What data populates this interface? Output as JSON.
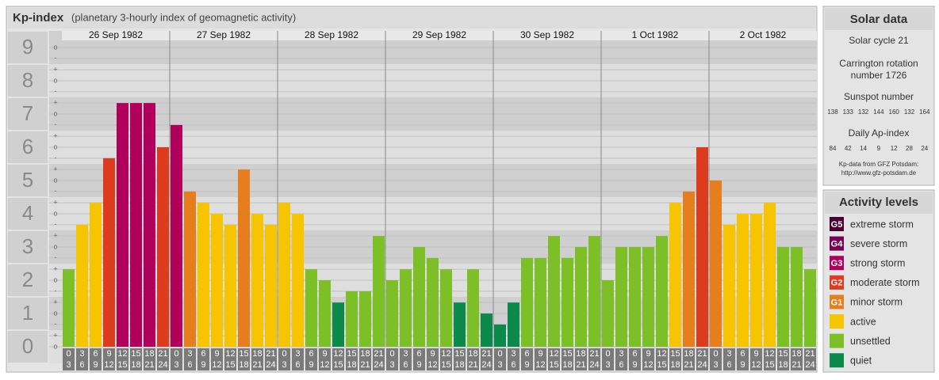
{
  "chart_data": {
    "type": "bar",
    "title": "Kp-index",
    "subtitle": "(planetary 3-hourly index of geomagnetic activity)",
    "ylim": [
      0,
      9.5
    ],
    "yticks": [
      0,
      1,
      2,
      3,
      4,
      5,
      6,
      7,
      8,
      9
    ],
    "minor_yticks": [
      {
        "value": 0,
        "label": "o"
      },
      {
        "value": 0.33,
        "label": "+"
      },
      {
        "value": 0.67,
        "label": "-"
      },
      {
        "value": 1,
        "label": "o"
      },
      {
        "value": 1.33,
        "label": "+"
      },
      {
        "value": 1.67,
        "label": "-"
      },
      {
        "value": 2,
        "label": "o"
      },
      {
        "value": 2.33,
        "label": "+"
      },
      {
        "value": 2.67,
        "label": "-"
      },
      {
        "value": 3,
        "label": "o"
      },
      {
        "value": 3.33,
        "label": "+"
      },
      {
        "value": 3.67,
        "label": "-"
      },
      {
        "value": 4,
        "label": "o"
      },
      {
        "value": 4.33,
        "label": "+"
      },
      {
        "value": 4.67,
        "label": "-"
      },
      {
        "value": 5,
        "label": "o"
      },
      {
        "value": 5.33,
        "label": "+"
      },
      {
        "value": 5.67,
        "label": "-"
      },
      {
        "value": 6,
        "label": "o"
      },
      {
        "value": 6.33,
        "label": "+"
      },
      {
        "value": 6.67,
        "label": "-"
      },
      {
        "value": 7,
        "label": "o"
      },
      {
        "value": 7.33,
        "label": "+"
      },
      {
        "value": 7.67,
        "label": "-"
      },
      {
        "value": 8,
        "label": "o"
      },
      {
        "value": 8.33,
        "label": "+"
      },
      {
        "value": 8.67,
        "label": "-"
      },
      {
        "value": 9,
        "label": "o"
      }
    ],
    "hours": [
      [
        "0",
        "3"
      ],
      [
        "3",
        "6"
      ],
      [
        "6",
        "9"
      ],
      [
        "9",
        "12"
      ],
      [
        "12",
        "15"
      ],
      [
        "15",
        "18"
      ],
      [
        "18",
        "21"
      ],
      [
        "21",
        "24"
      ]
    ],
    "days": [
      {
        "label": "26 Sep 1982",
        "values": [
          2.33,
          3.67,
          4.33,
          5.67,
          7.33,
          7.33,
          7.33,
          6
        ],
        "colors": [
          "#7dbf27",
          "#f7c500",
          "#f7c500",
          "#dd3b1e",
          "#b0005b",
          "#b0005b",
          "#b0005b",
          "#dd3b1e"
        ]
      },
      {
        "label": "27 Sep 1982",
        "values": [
          6.67,
          4.67,
          4.33,
          4,
          3.67,
          5.33,
          4,
          3.67
        ],
        "colors": [
          "#b0005b",
          "#e67e1e",
          "#f7c500",
          "#f7c500",
          "#f7c500",
          "#e67e1e",
          "#f7c500",
          "#f7c500"
        ]
      },
      {
        "label": "28 Sep 1982",
        "values": [
          4.33,
          4,
          2.33,
          2,
          1.33,
          1.67,
          1.67,
          3.33
        ],
        "colors": [
          "#f7c500",
          "#f7c500",
          "#7dbf27",
          "#7dbf27",
          "#0b8a4b",
          "#7dbf27",
          "#7dbf27",
          "#7dbf27"
        ]
      },
      {
        "label": "29 Sep 1982",
        "values": [
          2,
          2.33,
          3,
          2.67,
          2.33,
          1.33,
          2.33,
          1
        ],
        "colors": [
          "#7dbf27",
          "#7dbf27",
          "#7dbf27",
          "#7dbf27",
          "#7dbf27",
          "#0b8a4b",
          "#7dbf27",
          "#0b8a4b"
        ]
      },
      {
        "label": "30 Sep 1982",
        "values": [
          0.67,
          1.33,
          2.67,
          2.67,
          3.33,
          2.67,
          3,
          3.33
        ],
        "colors": [
          "#0b8a4b",
          "#0b8a4b",
          "#7dbf27",
          "#7dbf27",
          "#7dbf27",
          "#7dbf27",
          "#7dbf27",
          "#7dbf27"
        ]
      },
      {
        "label": "1 Oct 1982",
        "values": [
          2,
          3,
          3,
          3,
          3.33,
          4.33,
          4.67,
          6
        ],
        "colors": [
          "#7dbf27",
          "#7dbf27",
          "#7dbf27",
          "#7dbf27",
          "#7dbf27",
          "#f7c500",
          "#e67e1e",
          "#dd3b1e"
        ]
      },
      {
        "label": "2 Oct 1982",
        "values": [
          5,
          3.67,
          4,
          4,
          4.33,
          3,
          3,
          2.33
        ],
        "colors": [
          "#e67e1e",
          "#f7c500",
          "#f7c500",
          "#f7c500",
          "#f7c500",
          "#7dbf27",
          "#7dbf27",
          "#7dbf27"
        ]
      }
    ]
  },
  "solar": {
    "title": "Solar data",
    "cycle": "Solar cycle 21",
    "carrington": [
      "Carrington rotation",
      "number 1726"
    ],
    "sunspot_title": "Sunspot number",
    "sunspot": [
      138,
      133,
      132,
      144,
      160,
      132,
      164
    ],
    "ap_title": "Daily Ap-index",
    "ap": [
      84,
      42,
      14,
      9,
      12,
      28,
      24
    ],
    "source": "Kp-data from GFZ Potsdam:",
    "url": "http://www.gfz-potsdam.de"
  },
  "legend": {
    "title": "Activity levels",
    "items": [
      {
        "code": "G5",
        "label": "extreme storm",
        "color": "#4a0030"
      },
      {
        "code": "G4",
        "label": "severe storm",
        "color": "#7a0058"
      },
      {
        "code": "G3",
        "label": "strong storm",
        "color": "#b0005b"
      },
      {
        "code": "G2",
        "label": "moderate storm",
        "color": "#dd3b1e"
      },
      {
        "code": "G1",
        "label": "minor storm",
        "color": "#e67e1e"
      },
      {
        "label": "active",
        "color": "#f7c500"
      },
      {
        "label": "unsettled",
        "color": "#7dbf27"
      },
      {
        "label": "quiet",
        "color": "#0b8a4b"
      }
    ]
  }
}
